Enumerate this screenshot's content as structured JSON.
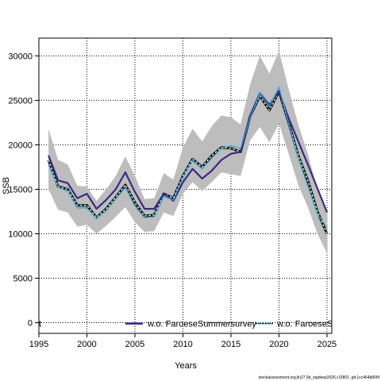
{
  "chart_data": {
    "type": "line",
    "xlabel": "Years",
    "ylabel": "SSB",
    "xlim": [
      1995,
      2025.5
    ],
    "ylim": [
      -1200,
      32000
    ],
    "x_ticks": [
      1995,
      2000,
      2005,
      2010,
      2015,
      2020,
      2025
    ],
    "y_ticks": [
      0,
      5000,
      10000,
      15000,
      20000,
      25000,
      30000
    ],
    "grid": true,
    "grid_style": "dotted",
    "legend_placement": "bottom",
    "credit": "stockassessment.org,lin27.5b_wgdeep2026,r19801 ,git:1cc464b806f",
    "x": [
      1996,
      1997,
      1998,
      1999,
      2000,
      2001,
      2002,
      2003,
      2004,
      2005,
      2006,
      2007,
      2008,
      2009,
      2010,
      2011,
      2012,
      2013,
      2014,
      2015,
      2016,
      2017,
      2018,
      2019,
      2020,
      2021,
      2022,
      2023,
      2024,
      2025
    ],
    "band": {
      "lower": [
        15000,
        12700,
        12400,
        10800,
        11000,
        10000,
        10900,
        11900,
        13000,
        11300,
        10200,
        10300,
        12400,
        12000,
        14500,
        15800,
        14800,
        15800,
        16900,
        16700,
        16500,
        20500,
        22000,
        20300,
        22400,
        19000,
        15500,
        13000,
        10000,
        7800
      ],
      "upper": [
        21800,
        18300,
        17800,
        15400,
        15300,
        13700,
        15000,
        16500,
        18700,
        16500,
        13900,
        14000,
        16800,
        16100,
        19700,
        21800,
        20400,
        22100,
        23300,
        23100,
        22300,
        26800,
        30000,
        28000,
        30600,
        26300,
        22300,
        19000,
        15000,
        12200
      ],
      "color": "#bdbdbd"
    },
    "series": [
      {
        "name": "",
        "color": "#000000",
        "style": "solid",
        "values": [
          18300,
          15300,
          15000,
          13200,
          13200,
          11800,
          12800,
          14100,
          15500,
          13500,
          12000,
          12100,
          14500,
          14000,
          16500,
          18400,
          17500,
          18800,
          19700,
          19600,
          19200,
          23200,
          25500,
          23900,
          26000,
          22500,
          18800,
          16000,
          12500,
          10000
        ]
      },
      {
        "name": "",
        "color": "#e8e8c8",
        "style": "dashed",
        "values": [
          18300,
          15300,
          15000,
          13200,
          13200,
          11800,
          12800,
          14100,
          15500,
          13500,
          12000,
          12100,
          14500,
          14000,
          16500,
          18400,
          17500,
          18800,
          19700,
          19600,
          19200,
          23200,
          25500,
          23900,
          26000,
          22500,
          18800,
          16000,
          12500,
          10000
        ]
      },
      {
        "name": "w.o. FaroeseSummersurvey",
        "color": "#3a2a88",
        "style": "solid",
        "values": [
          18800,
          16000,
          15700,
          14000,
          14500,
          12800,
          13800,
          15000,
          16900,
          14700,
          12800,
          12800,
          14500,
          13700,
          15800,
          17300,
          16200,
          17100,
          18300,
          19000,
          19200,
          23300,
          25800,
          24500,
          26000,
          23000,
          20400,
          17800,
          15100,
          12400
        ]
      },
      {
        "name": "w.o. FaroeseSp",
        "color": "#29a8e0",
        "style": "solid",
        "values": [
          17800,
          15200,
          14800,
          12900,
          12900,
          11700,
          12600,
          13900,
          15200,
          13100,
          11800,
          11900,
          14200,
          13800,
          16300,
          18200,
          17300,
          18500,
          19600,
          19900,
          19600,
          23000,
          25800,
          24300,
          26500,
          22400,
          18500,
          15400,
          12200,
          10700
        ]
      }
    ],
    "legend": [
      {
        "label": "t",
        "color": "#000000"
      },
      {
        "label": "w.o. FaroeseSummersurvey",
        "color": "#3a2a88"
      },
      {
        "label": "w.o. FaroeseSp",
        "color": "#29a8e0"
      }
    ]
  }
}
